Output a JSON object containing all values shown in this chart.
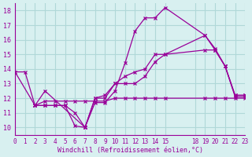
{
  "background_color": "#d8f0f0",
  "grid_color": "#b0d8d8",
  "line_color": "#990099",
  "xlabel": "Windchill (Refroidissement éolien,°C)",
  "xlim": [
    0,
    23
  ],
  "ylim": [
    9.5,
    18.5
  ],
  "yticks": [
    10,
    11,
    12,
    13,
    14,
    15,
    16,
    17,
    18
  ],
  "xticks": [
    0,
    1,
    2,
    3,
    4,
    5,
    6,
    7,
    8,
    9,
    10,
    11,
    12,
    13,
    14,
    15,
    18,
    19,
    20,
    21,
    22,
    23
  ],
  "series": [
    {
      "x": [
        0,
        1,
        2,
        3,
        4,
        5,
        6,
        7,
        8,
        9,
        10,
        11,
        12,
        13,
        14,
        15,
        19,
        20,
        21,
        22,
        23
      ],
      "y": [
        13.8,
        13.8,
        11.5,
        11.5,
        11.5,
        11.5,
        10.1,
        10.0,
        11.7,
        11.7,
        12.5,
        14.4,
        16.6,
        17.5,
        17.5,
        18.2,
        16.3,
        15.3,
        14.2,
        12.1,
        12.1
      ]
    },
    {
      "x": [
        0,
        2,
        3,
        4,
        5,
        6,
        7,
        8,
        9,
        10,
        11,
        12,
        13,
        14,
        15,
        19,
        20,
        21,
        22,
        23
      ],
      "y": [
        13.8,
        11.5,
        11.5,
        11.5,
        11.5,
        11.0,
        10.0,
        12.0,
        12.0,
        13.0,
        13.0,
        13.0,
        13.5,
        14.5,
        15.0,
        16.3,
        15.4,
        14.2,
        12.2,
        12.2
      ]
    },
    {
      "x": [
        2,
        3,
        7,
        8,
        9,
        10,
        11,
        12,
        13,
        14,
        15,
        19,
        20,
        21,
        22,
        23
      ],
      "y": [
        11.5,
        12.5,
        10.0,
        12.0,
        12.2,
        13.0,
        13.5,
        13.8,
        14.0,
        15.0,
        15.0,
        15.3,
        15.3,
        14.2,
        12.2,
        12.2
      ]
    },
    {
      "x": [
        2,
        3,
        4,
        5,
        6,
        7,
        8,
        9,
        10,
        11,
        12,
        13,
        14,
        15,
        19,
        20,
        21,
        22,
        23
      ],
      "y": [
        11.5,
        11.8,
        11.8,
        11.8,
        11.8,
        11.8,
        11.8,
        11.8,
        12.0,
        12.0,
        12.0,
        12.0,
        12.0,
        12.0,
        12.0,
        12.0,
        12.0,
        12.0,
        12.0
      ]
    }
  ]
}
